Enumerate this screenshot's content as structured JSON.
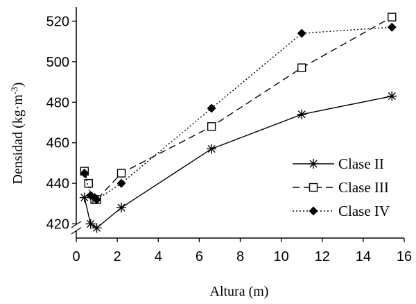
{
  "chart_data": {
    "type": "line",
    "title": "",
    "xlabel": "Altura (m)",
    "ylabel_main": "Densidad (kg·m",
    "ylabel_sup": "-3",
    "ylabel_close": ")",
    "xlim": [
      0,
      16
    ],
    "ylim": [
      413,
      527
    ],
    "axis_break_y": true,
    "xticks": [
      0,
      2,
      4,
      6,
      8,
      10,
      12,
      14,
      16
    ],
    "yticks": [
      420,
      440,
      460,
      480,
      500,
      520
    ],
    "grid": false,
    "legend_position": "center-right",
    "series": [
      {
        "name": "Clase II",
        "marker": "asterisk",
        "line_style": "solid",
        "color": "#000000",
        "x": [
          0.4,
          0.7,
          1.0,
          2.2,
          6.6,
          11.0,
          15.4
        ],
        "y": [
          433,
          420,
          418,
          428,
          457,
          474,
          483
        ]
      },
      {
        "name": "Clase III",
        "marker": "open-square",
        "line_style": "dashed",
        "color": "#000000",
        "x": [
          0.4,
          0.6,
          0.9,
          1.0,
          2.2,
          6.6,
          11.0,
          15.4
        ],
        "y": [
          446,
          440,
          432,
          432,
          445,
          468,
          497,
          522
        ]
      },
      {
        "name": "Clase IV",
        "marker": "filled-diamond",
        "line_style": "dotted",
        "color": "#000000",
        "x": [
          0.4,
          0.7,
          0.9,
          1.0,
          2.2,
          6.6,
          11.0,
          15.4
        ],
        "y": [
          445,
          434,
          433,
          432,
          440,
          477,
          514,
          517
        ]
      }
    ]
  }
}
